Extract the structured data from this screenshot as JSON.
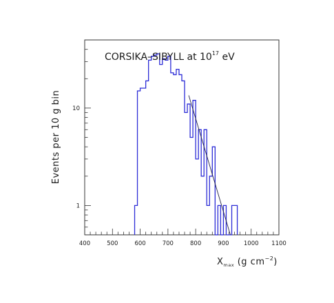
{
  "chart_data": {
    "type": "histogram",
    "title": {
      "main": "CORSIKA–SIBYLL at 10",
      "exponent": "17",
      "suffix": " eV"
    },
    "xlabel": {
      "main": "X",
      "subscript": "max",
      "unit_start": " (g cm",
      "unit_exponent": "−2",
      "unit_end": ")"
    },
    "ylabel": "Events per 10 g bin",
    "x_range": [
      400,
      1100
    ],
    "y_scale": "log",
    "y_range": [
      0.5,
      50
    ],
    "x_ticks": [
      400,
      500,
      600,
      700,
      800,
      900,
      1000,
      1100
    ],
    "x_tick_labels": [
      "400",
      "500",
      "600",
      "700",
      "800",
      "900",
      "1000",
      "1100"
    ],
    "y_ticks": [
      1,
      10
    ],
    "y_tick_labels": [
      "1",
      "10"
    ],
    "histogram_color": "#2b2bd6",
    "fit_color": "#222244",
    "bin_width": 10,
    "bins": [
      {
        "x_low": 580,
        "count": 1
      },
      {
        "x_low": 590,
        "count": 15
      },
      {
        "x_low": 600,
        "count": 16
      },
      {
        "x_low": 610,
        "count": 16
      },
      {
        "x_low": 620,
        "count": 19
      },
      {
        "x_low": 630,
        "count": 31
      },
      {
        "x_low": 640,
        "count": 34
      },
      {
        "x_low": 650,
        "count": 35
      },
      {
        "x_low": 660,
        "count": 36
      },
      {
        "x_low": 670,
        "count": 28
      },
      {
        "x_low": 680,
        "count": 32
      },
      {
        "x_low": 690,
        "count": 31
      },
      {
        "x_low": 700,
        "count": 34
      },
      {
        "x_low": 710,
        "count": 23
      },
      {
        "x_low": 720,
        "count": 22
      },
      {
        "x_low": 730,
        "count": 25
      },
      {
        "x_low": 740,
        "count": 22
      },
      {
        "x_low": 750,
        "count": 19
      },
      {
        "x_low": 760,
        "count": 9
      },
      {
        "x_low": 770,
        "count": 11
      },
      {
        "x_low": 780,
        "count": 5
      },
      {
        "x_low": 790,
        "count": 12
      },
      {
        "x_low": 800,
        "count": 3
      },
      {
        "x_low": 810,
        "count": 6
      },
      {
        "x_low": 820,
        "count": 2
      },
      {
        "x_low": 830,
        "count": 6
      },
      {
        "x_low": 840,
        "count": 1
      },
      {
        "x_low": 850,
        "count": 2
      },
      {
        "x_low": 860,
        "count": 4
      },
      {
        "x_low": 870,
        "count": 0
      },
      {
        "x_low": 880,
        "count": 1
      },
      {
        "x_low": 890,
        "count": 0
      },
      {
        "x_low": 900,
        "count": 1
      },
      {
        "x_low": 910,
        "count": 0
      },
      {
        "x_low": 920,
        "count": 0
      },
      {
        "x_low": 930,
        "count": 1
      },
      {
        "x_low": 940,
        "count": 1
      }
    ],
    "fit_line": {
      "x": [
        775,
        925
      ],
      "y": [
        13.5,
        0.5
      ]
    }
  }
}
